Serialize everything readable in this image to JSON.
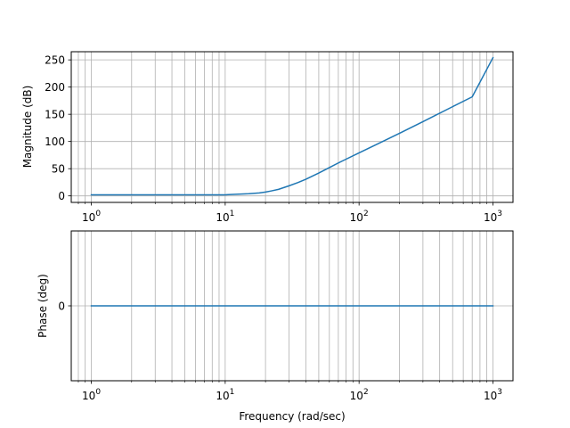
{
  "figure": {
    "background": "#ffffff",
    "grid_color": "#b0b0b0",
    "line_color": "#1f77b4"
  },
  "chart_data": [
    {
      "type": "line",
      "title": "",
      "xlabel": "",
      "ylabel": "Magnitude (dB)",
      "xscale": "log",
      "xlim": [
        0.708,
        1412
      ],
      "ylim": [
        -12,
        265
      ],
      "grid": "both-major-minor",
      "x_ticks": [
        {
          "value": 1,
          "base": "10",
          "exp": "0"
        },
        {
          "value": 10,
          "base": "10",
          "exp": "1"
        },
        {
          "value": 100,
          "base": "10",
          "exp": "2"
        },
        {
          "value": 1000,
          "base": "10",
          "exp": "3"
        }
      ],
      "y_ticks": [
        {
          "value": 0,
          "label": "0"
        },
        {
          "value": 50,
          "label": "50"
        },
        {
          "value": 100,
          "label": "100"
        },
        {
          "value": 150,
          "label": "150"
        },
        {
          "value": 200,
          "label": "200"
        },
        {
          "value": 250,
          "label": "250"
        }
      ],
      "series": [
        {
          "x": [
            1,
            5,
            10,
            12,
            15,
            18,
            20,
            22,
            25,
            30,
            35,
            40,
            50,
            60,
            70,
            80,
            100,
            150,
            200,
            300,
            500,
            700,
            1000
          ],
          "values": [
            2,
            2,
            2,
            3,
            4,
            5.5,
            7,
            9,
            12,
            18.5,
            24.5,
            30.5,
            42,
            52,
            60.5,
            67.5,
            79,
            100,
            115,
            136.5,
            164,
            182,
            254
          ]
        }
      ]
    },
    {
      "type": "line",
      "title": "",
      "xlabel": "Frequency (rad/sec)",
      "ylabel": "Phase (deg)",
      "xscale": "log",
      "xlim": [
        0.708,
        1412
      ],
      "ylim": [
        -1,
        1
      ],
      "grid": "both-major-minor",
      "x_ticks": [
        {
          "value": 1,
          "base": "10",
          "exp": "0"
        },
        {
          "value": 10,
          "base": "10",
          "exp": "1"
        },
        {
          "value": 100,
          "base": "10",
          "exp": "2"
        },
        {
          "value": 1000,
          "base": "10",
          "exp": "3"
        }
      ],
      "y_ticks": [
        {
          "value": 0,
          "label": "0"
        }
      ],
      "series": [
        {
          "x": [
            1,
            1000
          ],
          "values": [
            0,
            0
          ]
        }
      ]
    }
  ]
}
